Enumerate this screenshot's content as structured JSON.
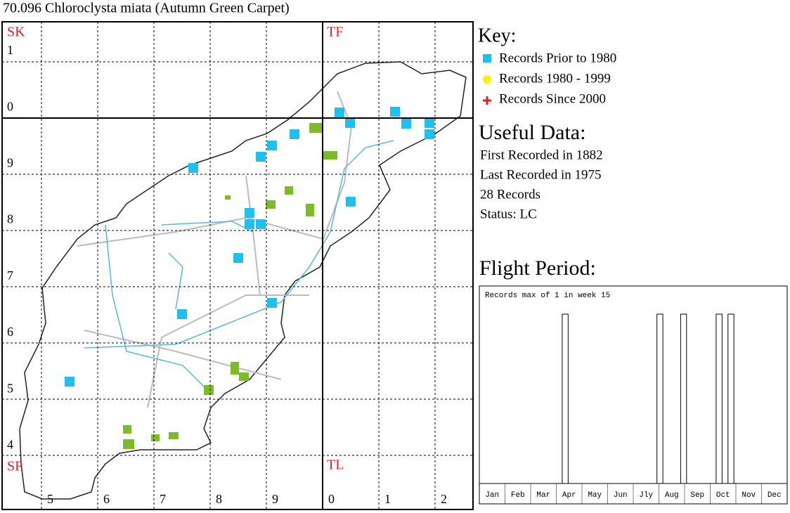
{
  "title": "70.096 Chloroclysta miata (Autumn Green Carpet)",
  "grid": {
    "squares": [
      "SK",
      "TF",
      "SP",
      "TL"
    ],
    "row_labels": [
      "1",
      "0",
      "9",
      "8",
      "7",
      "6",
      "5",
      "4"
    ],
    "col_labels": [
      "5",
      "6",
      "7",
      "8",
      "9",
      "0",
      "1",
      "2"
    ]
  },
  "key": {
    "title": "Key:",
    "items": [
      "Records Prior to 1980",
      "Records 1980 - 1999",
      "Records Since 2000"
    ]
  },
  "useful_data": {
    "title": "Useful Data:",
    "lines": [
      "First Recorded in 1882",
      "Last Recorded in 1975",
      "28 Records",
      "Status: LC"
    ]
  },
  "chart_data": {
    "type": "bar",
    "title": "Flight Period:",
    "subtitle": "Records max of 1 in week 15",
    "categories": [
      "Jan",
      "Feb",
      "Mar",
      "Apr",
      "May",
      "Jun",
      "Jly",
      "Aug",
      "Sep",
      "Oct",
      "Nov",
      "Dec"
    ],
    "x": [
      15,
      31,
      35,
      41,
      43
    ],
    "values": [
      1,
      1,
      1,
      1,
      1
    ],
    "xlim": [
      1,
      53
    ],
    "ylim": [
      0,
      1
    ],
    "color": "#ffffff"
  }
}
